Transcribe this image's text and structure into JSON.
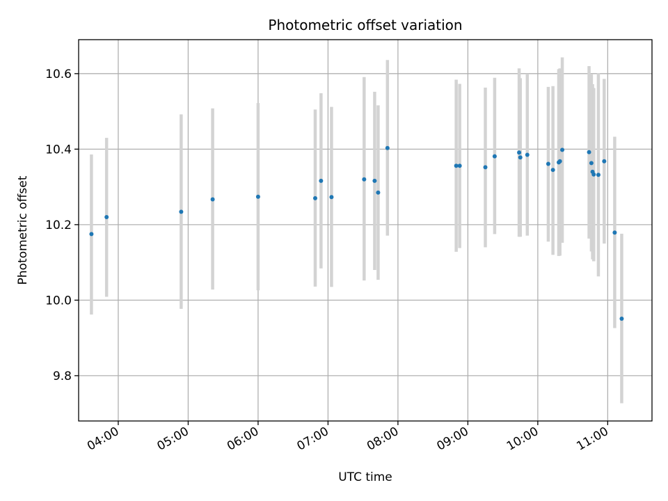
{
  "chart_data": {
    "type": "scatter",
    "title": "Photometric offset variation",
    "xlabel": "UTC time",
    "ylabel": "Photometric offset",
    "x_ticks": [
      "04:00",
      "05:00",
      "06:00",
      "07:00",
      "08:00",
      "09:00",
      "10:00",
      "11:00"
    ],
    "y_ticks": [
      9.8,
      10.0,
      10.2,
      10.4,
      10.6
    ],
    "xlim": [
      "03:26",
      "11:38"
    ],
    "ylim": [
      9.68,
      10.69
    ],
    "grid": true,
    "marker_color": "#1f77b4",
    "errorbar_color": "#d3d3d3",
    "points": [
      {
        "t": "03:37",
        "y": 10.175,
        "lo": 9.962,
        "hi": 10.386
      },
      {
        "t": "03:50",
        "y": 10.22,
        "lo": 10.009,
        "hi": 10.43
      },
      {
        "t": "04:54",
        "y": 10.234,
        "lo": 9.977,
        "hi": 10.492
      },
      {
        "t": "05:21",
        "y": 10.267,
        "lo": 10.028,
        "hi": 10.508
      },
      {
        "t": "06:00",
        "y": 10.274,
        "lo": 10.026,
        "hi": 10.522
      },
      {
        "t": "06:49",
        "y": 10.27,
        "lo": 10.036,
        "hi": 10.505
      },
      {
        "t": "06:54",
        "y": 10.316,
        "lo": 10.084,
        "hi": 10.548
      },
      {
        "t": "07:03",
        "y": 10.273,
        "lo": 10.035,
        "hi": 10.512
      },
      {
        "t": "07:31",
        "y": 10.32,
        "lo": 10.052,
        "hi": 10.591
      },
      {
        "t": "07:40",
        "y": 10.316,
        "lo": 10.08,
        "hi": 10.552
      },
      {
        "t": "07:43",
        "y": 10.285,
        "lo": 10.054,
        "hi": 10.516
      },
      {
        "t": "07:51",
        "y": 10.403,
        "lo": 10.171,
        "hi": 10.636
      },
      {
        "t": "08:50",
        "y": 10.356,
        "lo": 10.128,
        "hi": 10.584
      },
      {
        "t": "08:53",
        "y": 10.356,
        "lo": 10.138,
        "hi": 10.573
      },
      {
        "t": "09:15",
        "y": 10.352,
        "lo": 10.14,
        "hi": 10.563
      },
      {
        "t": "09:23",
        "y": 10.381,
        "lo": 10.175,
        "hi": 10.589
      },
      {
        "t": "09:44",
        "y": 10.391,
        "lo": 10.168,
        "hi": 10.614
      },
      {
        "t": "09:45",
        "y": 10.378,
        "lo": 10.168,
        "hi": 10.588
      },
      {
        "t": "09:51",
        "y": 10.385,
        "lo": 10.171,
        "hi": 10.6
      },
      {
        "t": "10:09",
        "y": 10.361,
        "lo": 10.155,
        "hi": 10.565
      },
      {
        "t": "10:13",
        "y": 10.345,
        "lo": 10.12,
        "hi": 10.567
      },
      {
        "t": "10:18",
        "y": 10.365,
        "lo": 10.117,
        "hi": 10.612
      },
      {
        "t": "10:19",
        "y": 10.368,
        "lo": 10.118,
        "hi": 10.614
      },
      {
        "t": "10:21",
        "y": 10.398,
        "lo": 10.152,
        "hi": 10.643
      },
      {
        "t": "10:44",
        "y": 10.392,
        "lo": 10.163,
        "hi": 10.62
      },
      {
        "t": "10:46",
        "y": 10.363,
        "lo": 10.129,
        "hi": 10.598
      },
      {
        "t": "10:47",
        "y": 10.34,
        "lo": 10.108,
        "hi": 10.572
      },
      {
        "t": "10:48",
        "y": 10.333,
        "lo": 10.103,
        "hi": 10.562
      },
      {
        "t": "10:52",
        "y": 10.332,
        "lo": 10.063,
        "hi": 10.601
      },
      {
        "t": "10:57",
        "y": 10.368,
        "lo": 10.15,
        "hi": 10.586
      },
      {
        "t": "11:06",
        "y": 10.179,
        "lo": 9.926,
        "hi": 10.433
      },
      {
        "t": "11:12",
        "y": 9.951,
        "lo": 9.727,
        "hi": 10.176
      }
    ]
  }
}
